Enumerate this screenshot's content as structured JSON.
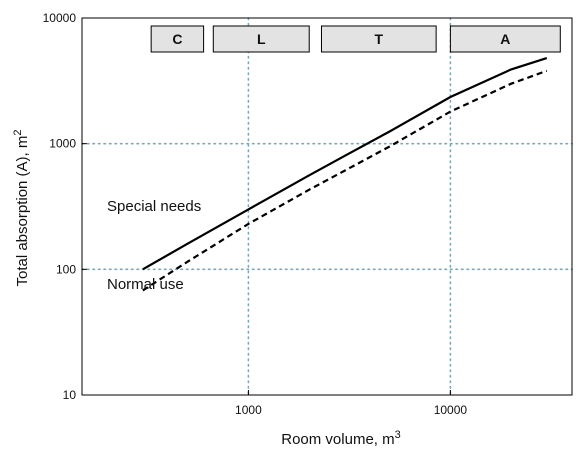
{
  "chart_data": {
    "type": "line",
    "xlabel": "Room volume, m",
    "xlabel_sup": "3",
    "ylabel": "Total absorption (A), m",
    "ylabel_sup": "2",
    "x_scale": "log",
    "y_scale": "log",
    "xlim": [
      150,
      40000
    ],
    "ylim": [
      10,
      10000
    ],
    "x_ticks": [
      1000,
      10000
    ],
    "x_tick_labels": [
      "1000",
      "10000"
    ],
    "y_ticks": [
      10,
      100,
      1000,
      10000
    ],
    "y_tick_labels": [
      "10",
      "100",
      "1000",
      "10000"
    ],
    "grid": "dotted at major ticks",
    "series": [
      {
        "name": "Special needs",
        "style": "solid",
        "x": [
          300,
          500,
          1000,
          2000,
          3000,
          5000,
          10000,
          20000,
          30000
        ],
        "y": [
          100,
          160,
          300,
          560,
          800,
          1250,
          2350,
          3900,
          4800
        ]
      },
      {
        "name": "Normal use",
        "style": "dashed",
        "x": [
          300,
          500,
          1000,
          2000,
          3000,
          5000,
          10000,
          20000,
          30000
        ],
        "y": [
          68,
          115,
          230,
          430,
          610,
          950,
          1800,
          3000,
          3800
        ]
      }
    ],
    "bands": [
      {
        "label": "C",
        "x_start": 330,
        "x_end": 600
      },
      {
        "label": "L",
        "x_start": 670,
        "x_end": 2000
      },
      {
        "label": "T",
        "x_start": 2300,
        "x_end": 8500
      },
      {
        "label": "A",
        "x_start": 10000,
        "x_end": 35000
      }
    ],
    "colors": {
      "line": "#000000",
      "grid": "#7fa7b6",
      "band_fill": "#e3e3e3"
    }
  }
}
